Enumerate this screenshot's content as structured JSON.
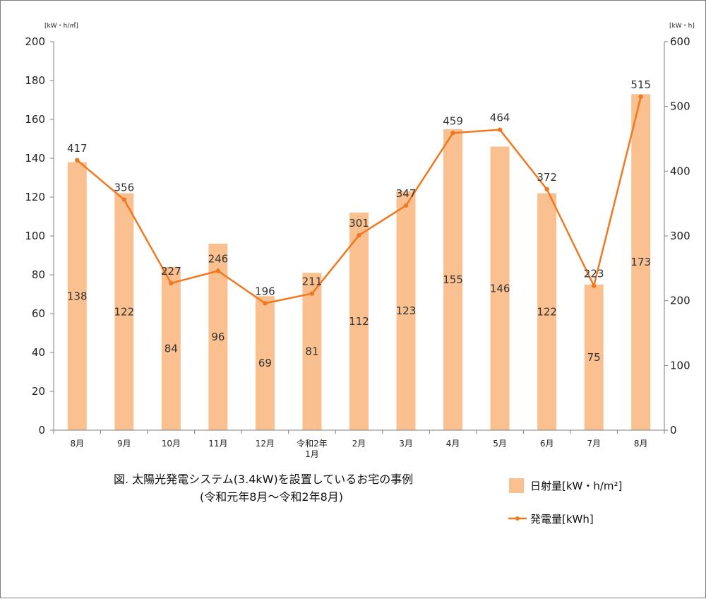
{
  "chart_data": {
    "type": "bar",
    "categories": [
      "8月",
      "9月",
      "10月",
      "11月",
      "12月",
      [
        "令和2年",
        "1月"
      ],
      "2月",
      "3月",
      "4月",
      "5月",
      "6月",
      "7月",
      "8月"
    ],
    "series": [
      {
        "name": "日射量[kW・h/m²]",
        "type": "bar",
        "axis": "left",
        "color": "#fac090",
        "values": [
          138,
          122,
          84,
          96,
          69,
          81,
          112,
          123,
          155,
          146,
          122,
          75,
          173
        ]
      },
      {
        "name": "発電量[kWh]",
        "type": "line",
        "axis": "right",
        "color": "#f07820",
        "values": [
          417,
          356,
          227,
          246,
          196,
          211,
          301,
          347,
          459,
          464,
          372,
          223,
          515
        ]
      }
    ],
    "y_left": {
      "unit": "[kW・h/㎡]",
      "lim": [
        0,
        200
      ],
      "ticks": [
        0,
        20,
        40,
        60,
        80,
        100,
        120,
        140,
        160,
        180,
        200
      ]
    },
    "y_right": {
      "unit": "[kW・h]",
      "lim": [
        0,
        600
      ],
      "ticks": [
        0,
        100,
        200,
        300,
        400,
        500,
        600
      ]
    },
    "caption": [
      "図. 太陽光発電システム(3.4kW)を設置しているお宅の事例",
      "(令和元年8月～令和2年8月)"
    ],
    "legend_position": "bottom-right",
    "grid": false
  }
}
